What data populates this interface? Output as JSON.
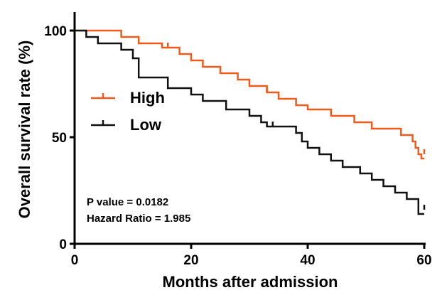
{
  "chart_data": {
    "type": "line",
    "title": "",
    "xlabel": "Months after admission",
    "ylabel": "Overall survival rate (%)",
    "xlim": [
      0,
      60
    ],
    "ylim": [
      0,
      100
    ],
    "x_ticks": [
      "0",
      "20",
      "40",
      "60"
    ],
    "y_ticks": [
      "0",
      "50",
      "100"
    ],
    "grid": false,
    "legend_position": "middle-left",
    "series": [
      {
        "name": "High",
        "color": "#f05a1a",
        "step": true,
        "points": [
          [
            0,
            100
          ],
          [
            8,
            100
          ],
          [
            8,
            97
          ],
          [
            11,
            97
          ],
          [
            11,
            94
          ],
          [
            15,
            94
          ],
          [
            15,
            92
          ],
          [
            18,
            92
          ],
          [
            18,
            89
          ],
          [
            20,
            89
          ],
          [
            20,
            86
          ],
          [
            22,
            86
          ],
          [
            22,
            83
          ],
          [
            25,
            83
          ],
          [
            25,
            80
          ],
          [
            28,
            80
          ],
          [
            28,
            77
          ],
          [
            30,
            77
          ],
          [
            30,
            74
          ],
          [
            33,
            74
          ],
          [
            33,
            71
          ],
          [
            35,
            71
          ],
          [
            35,
            68
          ],
          [
            38,
            68
          ],
          [
            38,
            65
          ],
          [
            40,
            65
          ],
          [
            40,
            63
          ],
          [
            44,
            63
          ],
          [
            44,
            60
          ],
          [
            48,
            60
          ],
          [
            48,
            57
          ],
          [
            51,
            57
          ],
          [
            51,
            54
          ],
          [
            56,
            54
          ],
          [
            56,
            51
          ],
          [
            58,
            51
          ],
          [
            58,
            48
          ],
          [
            58.5,
            48
          ],
          [
            58.5,
            45
          ],
          [
            59,
            45
          ],
          [
            59,
            42
          ],
          [
            59.5,
            42
          ],
          [
            59.5,
            40
          ],
          [
            60,
            40
          ]
        ],
        "censor_marks": [
          [
            16,
            92
          ],
          [
            33,
            71
          ],
          [
            60,
            42
          ]
        ]
      },
      {
        "name": "Low",
        "color": "#111111",
        "step": true,
        "points": [
          [
            0,
            100
          ],
          [
            2,
            100
          ],
          [
            2,
            97
          ],
          [
            4,
            97
          ],
          [
            4,
            94
          ],
          [
            8,
            94
          ],
          [
            8,
            91
          ],
          [
            10,
            91
          ],
          [
            10,
            87
          ],
          [
            11,
            87
          ],
          [
            11,
            78
          ],
          [
            16,
            78
          ],
          [
            16,
            73
          ],
          [
            20,
            73
          ],
          [
            20,
            70
          ],
          [
            22,
            70
          ],
          [
            22,
            67
          ],
          [
            26,
            67
          ],
          [
            26,
            63
          ],
          [
            30,
            63
          ],
          [
            30,
            60
          ],
          [
            32,
            60
          ],
          [
            32,
            57
          ],
          [
            33,
            57
          ],
          [
            33,
            55
          ],
          [
            38,
            55
          ],
          [
            38,
            52
          ],
          [
            39,
            52
          ],
          [
            39,
            48
          ],
          [
            40,
            48
          ],
          [
            40,
            45
          ],
          [
            42,
            45
          ],
          [
            42,
            42
          ],
          [
            44,
            42
          ],
          [
            44,
            39
          ],
          [
            46,
            39
          ],
          [
            46,
            36
          ],
          [
            49,
            36
          ],
          [
            49,
            33
          ],
          [
            51,
            33
          ],
          [
            51,
            30
          ],
          [
            53,
            30
          ],
          [
            53,
            27
          ],
          [
            55,
            27
          ],
          [
            55,
            24
          ],
          [
            57,
            24
          ],
          [
            57,
            21
          ],
          [
            59,
            21
          ],
          [
            59,
            14
          ],
          [
            60,
            14
          ]
        ],
        "censor_marks": [
          [
            34,
            55
          ],
          [
            60,
            16
          ]
        ]
      }
    ],
    "annotations": [
      "P value = 0.0182",
      "Hazard Ratio = 1.985"
    ]
  }
}
